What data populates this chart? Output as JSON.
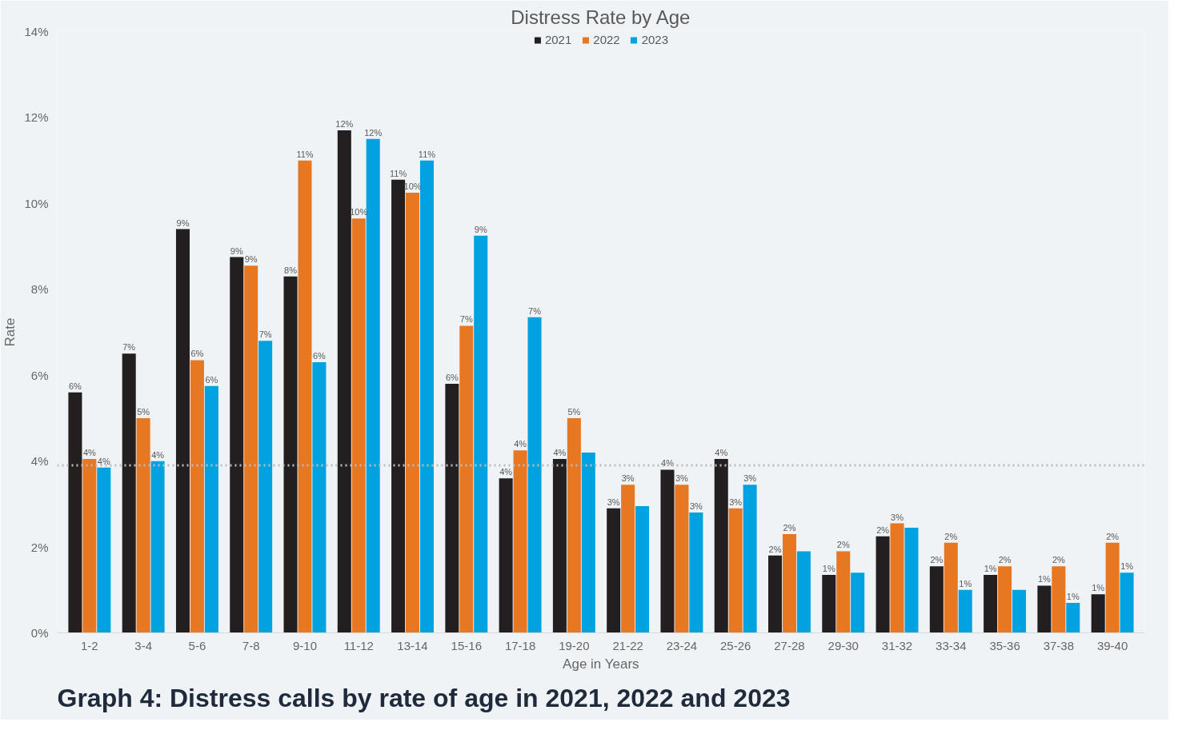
{
  "chart_data": {
    "type": "bar",
    "title": "Distress Rate by Age",
    "xlabel": "Age in Years",
    "ylabel": "Rate",
    "categories": [
      "1-2",
      "3-4",
      "5-6",
      "7-8",
      "9-10",
      "11-12",
      "13-14",
      "15-16",
      "17-18",
      "19-20",
      "21-22",
      "23-24",
      "25-26",
      "27-28",
      "29-30",
      "31-32",
      "33-34",
      "35-36",
      "37-38",
      "39-40"
    ],
    "series": [
      {
        "name": "2021",
        "color": "#231f20",
        "values": [
          5.6,
          6.5,
          9.4,
          8.75,
          8.3,
          11.7,
          10.55,
          5.8,
          3.6,
          4.05,
          2.9,
          3.8,
          4.05,
          1.8,
          1.35,
          2.25,
          1.55,
          1.35,
          1.1,
          0.9
        ],
        "value_labels": [
          "6%",
          "7%",
          "9%",
          "9%",
          "8%",
          "12%",
          "11%",
          "6%",
          "4%",
          "4%",
          "3%",
          "4%",
          "4%",
          "2%",
          "1%",
          "2%",
          "2%",
          "1%",
          "1%",
          "1%"
        ]
      },
      {
        "name": "2022",
        "color": "#e87722",
        "values": [
          4.05,
          5.0,
          6.35,
          8.55,
          11.0,
          9.65,
          10.25,
          7.15,
          4.25,
          5.0,
          3.45,
          3.45,
          2.9,
          2.3,
          1.9,
          2.55,
          2.1,
          1.55,
          1.55,
          2.1
        ],
        "value_labels": [
          "4%",
          "5%",
          "6%",
          "9%",
          "11%",
          "10%",
          "10%",
          "7%",
          "4%",
          "5%",
          "3%",
          "3%",
          "3%",
          "2%",
          "2%",
          "3%",
          "2%",
          "2%",
          "2%",
          "2%"
        ]
      },
      {
        "name": "2023",
        "color": "#00a3e0",
        "values": [
          3.85,
          4.0,
          5.75,
          6.8,
          6.3,
          11.5,
          11.0,
          9.25,
          7.35,
          4.2,
          2.95,
          2.8,
          3.45,
          1.9,
          1.4,
          2.45,
          1.0,
          1.0,
          0.7,
          1.4
        ],
        "value_labels": [
          "4%",
          "4%",
          "6%",
          "7%",
          "6%",
          "12%",
          "11%",
          "9%",
          "7%",
          null,
          null,
          "3%",
          "3%",
          null,
          null,
          null,
          "1%",
          null,
          "1%",
          "1%"
        ]
      }
    ],
    "ylim": [
      0,
      14
    ],
    "yticks": [
      {
        "value": 0,
        "label": "0%"
      },
      {
        "value": 2,
        "label": "2%"
      },
      {
        "value": 4,
        "label": "4%"
      },
      {
        "value": 6,
        "label": "6%"
      },
      {
        "value": 8,
        "label": "8%"
      },
      {
        "value": 10,
        "label": "10%"
      },
      {
        "value": 12,
        "label": "12%"
      },
      {
        "value": 14,
        "label": "14%"
      }
    ],
    "ref_lines": [
      {
        "axis": "y",
        "value": 3.9,
        "color": "#bbbbbb",
        "line_style": "dotted"
      }
    ],
    "grid": false,
    "legend": "top",
    "annotations": [
      "Graph 4: Distress calls by rate of age in 2021, 2022 and 2023"
    ]
  }
}
